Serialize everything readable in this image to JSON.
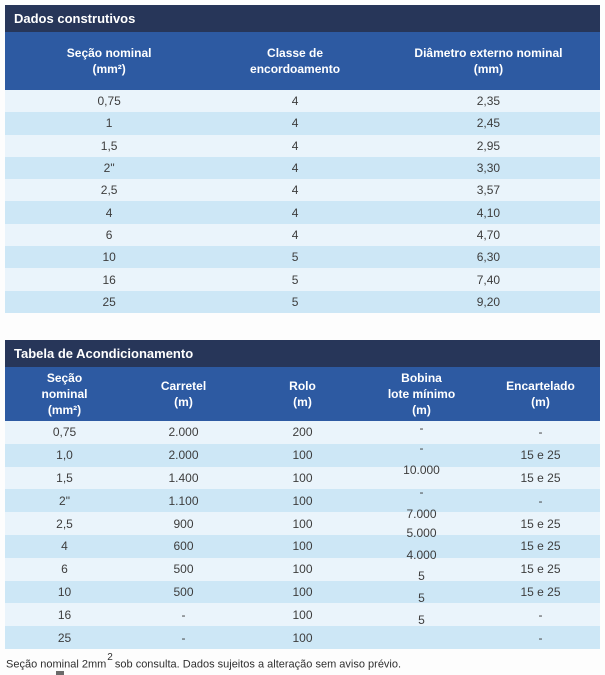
{
  "colors": {
    "title_bar_navy": "#273659",
    "header_blue": "#2d5aa2",
    "row_light": "#eaf4fb",
    "row_blue": "#cde7f6",
    "text_dark": "#3d3d3d"
  },
  "table1": {
    "title": "Dados construtivos",
    "columns": [
      "Seção nominal\n(mm²)",
      "Classe de\nencordoamento",
      "Diâmetro externo nominal\n(mm)"
    ],
    "rows": [
      [
        "0,75",
        "4",
        "2,35"
      ],
      [
        "1",
        "4",
        "2,45"
      ],
      [
        "1,5",
        "4",
        "2,95"
      ],
      [
        "2\"",
        "4",
        "3,30"
      ],
      [
        "2,5",
        "4",
        "3,57"
      ],
      [
        "4",
        "4",
        "4,10"
      ],
      [
        "6",
        "4",
        "4,70"
      ],
      [
        "10",
        "5",
        "6,30"
      ],
      [
        "16",
        "5",
        "7,40"
      ],
      [
        "25",
        "5",
        "9,20"
      ]
    ]
  },
  "table2": {
    "title": "Tabela de Acondicionamento",
    "columns": [
      "Seção\nnominal\n(mm²)",
      "Carretel\n(m)",
      "Rolo\n(m)",
      "Bobina\nlote mínimo\n(m)",
      "Encartelado\n(m)"
    ],
    "rows": [
      [
        "0,75",
        "2.000",
        "200",
        "-",
        "-"
      ],
      [
        "1,0",
        "2.000",
        "100",
        "-",
        "15 e 25"
      ],
      [
        "1,5",
        "1.400",
        "100",
        "10.000",
        "15 e 25"
      ],
      [
        "2\"",
        "1.100",
        "100",
        "-",
        "-"
      ],
      [
        "2,5",
        "900",
        "100",
        "7.000",
        "15 e 25"
      ],
      [
        "4",
        "600",
        "100",
        "5.000",
        "15 e 25"
      ],
      [
        "6",
        "500",
        "100",
        "4.000",
        "15 e 25"
      ],
      [
        "10",
        "500",
        "100",
        "5",
        "15 e 25"
      ],
      [
        "16",
        "-",
        "100",
        "5",
        "-"
      ],
      [
        "25",
        "-",
        "100",
        "5",
        "-"
      ]
    ]
  },
  "footnote": {
    "part1": "Seção nominal 2mm",
    "sup": "2",
    "part2": " sob consulta. Dados sujeitos a alteração sem aviso prévio."
  }
}
